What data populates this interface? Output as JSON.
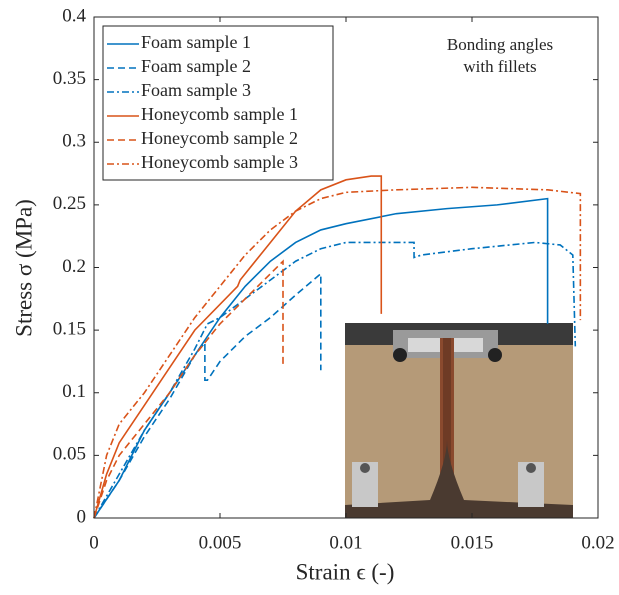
{
  "chart_data": {
    "type": "line",
    "xlabel": "Strain ϵ (-)",
    "ylabel": "Stress σ (MPa)",
    "annotation": [
      "Bonding angles",
      "with fillets"
    ],
    "xlim": [
      0,
      0.02
    ],
    "xticks": [
      0,
      0.005,
      0.01,
      0.015,
      0.02
    ],
    "ylim": [
      0,
      0.4
    ],
    "yticks": [
      0,
      0.05,
      0.1,
      0.15,
      0.2,
      0.25,
      0.3,
      0.35,
      0.4
    ],
    "grid": false,
    "legend": "top-left",
    "series": [
      {
        "name": "Foam sample 1",
        "color": "#0072bd",
        "dash": "solid",
        "x": [
          0,
          0.0005,
          0.001,
          0.002,
          0.003,
          0.004,
          0.005,
          0.006,
          0.007,
          0.008,
          0.009,
          0.01,
          0.012,
          0.014,
          0.016,
          0.018,
          0.018
        ],
        "values": [
          0,
          0.015,
          0.03,
          0.07,
          0.1,
          0.13,
          0.16,
          0.185,
          0.205,
          0.22,
          0.23,
          0.235,
          0.243,
          0.247,
          0.25,
          0.255,
          0.155
        ]
      },
      {
        "name": "Foam sample 2",
        "color": "#0072bd",
        "dash": "dashed",
        "x": [
          0,
          0.001,
          0.002,
          0.003,
          0.004,
          0.0044,
          0.0044,
          0.0045,
          0.005,
          0.006,
          0.007,
          0.008,
          0.009,
          0.009
        ],
        "values": [
          0,
          0.03,
          0.065,
          0.095,
          0.13,
          0.14,
          0.11,
          0.11,
          0.125,
          0.145,
          0.16,
          0.178,
          0.195,
          0.118
        ]
      },
      {
        "name": "Foam sample 3",
        "color": "#0072bd",
        "dash": "dashdot",
        "x": [
          0,
          0.001,
          0.002,
          0.003,
          0.004,
          0.0045,
          0.005,
          0.006,
          0.007,
          0.008,
          0.009,
          0.01,
          0.0127,
          0.0127,
          0.013,
          0.015,
          0.0175,
          0.0185,
          0.019,
          0.0191
        ],
        "values": [
          0,
          0.035,
          0.07,
          0.1,
          0.135,
          0.155,
          0.16,
          0.175,
          0.19,
          0.205,
          0.215,
          0.22,
          0.22,
          0.208,
          0.21,
          0.215,
          0.22,
          0.218,
          0.21,
          0.137
        ]
      },
      {
        "name": "Honeycomb sample 1",
        "color": "#d95319",
        "dash": "solid",
        "x": [
          0,
          0.0005,
          0.001,
          0.002,
          0.003,
          0.004,
          0.0057,
          0.0058,
          0.007,
          0.008,
          0.009,
          0.01,
          0.011,
          0.0114,
          0.0114
        ],
        "values": [
          0,
          0.035,
          0.06,
          0.09,
          0.12,
          0.15,
          0.185,
          0.19,
          0.22,
          0.245,
          0.262,
          0.27,
          0.273,
          0.273,
          0.163
        ]
      },
      {
        "name": "Honeycomb sample 2",
        "color": "#d95319",
        "dash": "dashed",
        "x": [
          0,
          0.0005,
          0.001,
          0.002,
          0.003,
          0.004,
          0.005,
          0.006,
          0.007,
          0.0075,
          0.0075
        ],
        "values": [
          0,
          0.03,
          0.05,
          0.075,
          0.1,
          0.13,
          0.155,
          0.175,
          0.195,
          0.205,
          0.123
        ]
      },
      {
        "name": "Honeycomb sample 3",
        "color": "#d95319",
        "dash": "dashdot",
        "x": [
          0,
          0.0005,
          0.001,
          0.002,
          0.003,
          0.004,
          0.005,
          0.006,
          0.007,
          0.008,
          0.009,
          0.01,
          0.012,
          0.015,
          0.018,
          0.0193,
          0.0193
        ],
        "values": [
          0,
          0.05,
          0.075,
          0.1,
          0.13,
          0.16,
          0.185,
          0.21,
          0.23,
          0.245,
          0.255,
          0.26,
          0.262,
          0.264,
          0.262,
          0.259,
          0.158
        ]
      }
    ]
  }
}
